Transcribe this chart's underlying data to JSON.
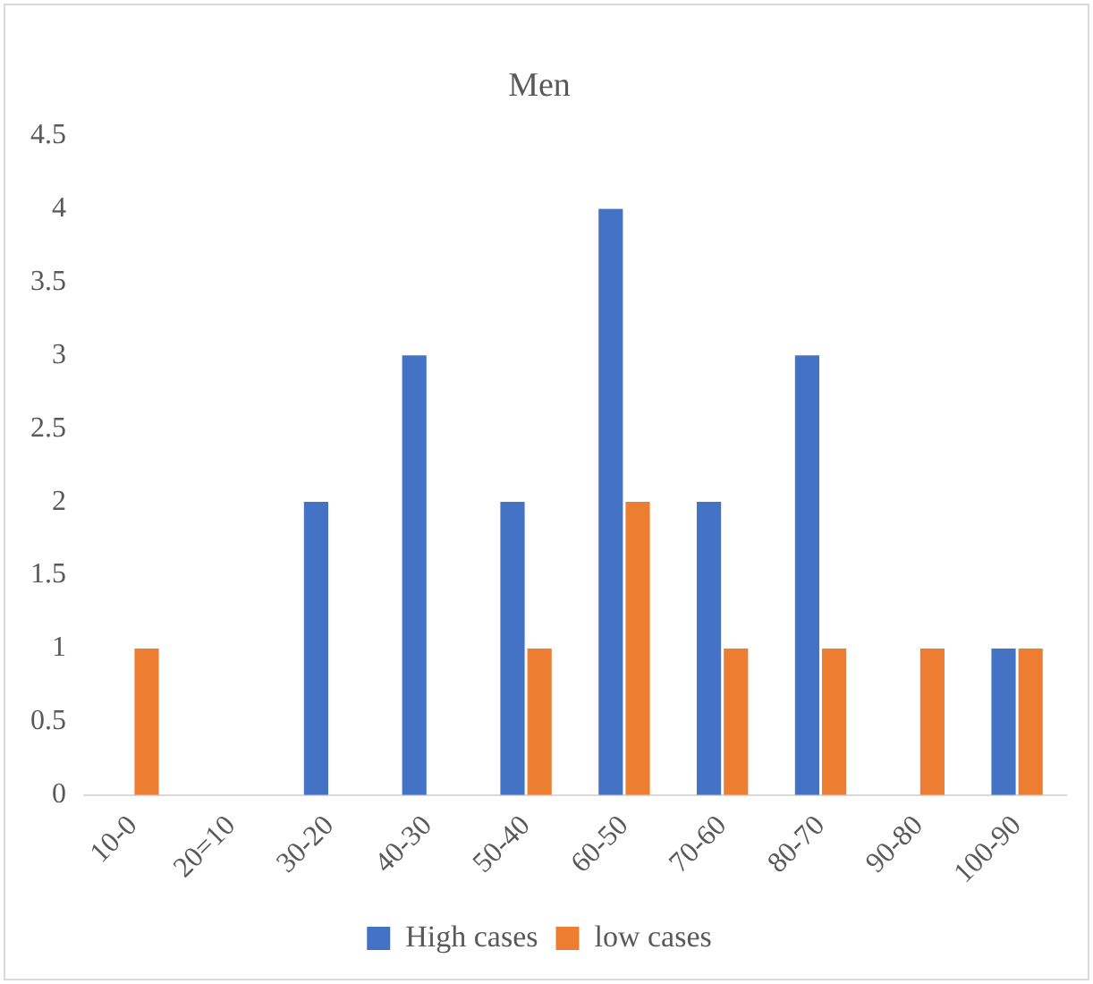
{
  "chart_data": {
    "type": "bar",
    "title": "Men",
    "categories": [
      "10-0",
      "20=10",
      "30-20",
      "40-30",
      "50-40",
      "60-50",
      "70-60",
      "80-70",
      "90-80",
      "100-90"
    ],
    "series": [
      {
        "name": "High cases",
        "color": "#4472c4",
        "values": [
          0,
          0,
          2,
          3,
          2,
          4,
          2,
          3,
          0,
          1
        ]
      },
      {
        "name": "low cases",
        "color": "#ed7d31",
        "values": [
          1,
          0,
          0,
          0,
          1,
          2,
          1,
          1,
          1,
          1
        ]
      }
    ],
    "ylim": [
      0,
      4.5
    ],
    "yticks": [
      0,
      0.5,
      1,
      1.5,
      2,
      2.5,
      3,
      3.5,
      4,
      4.5
    ],
    "grid": false,
    "legend": "bottom"
  }
}
